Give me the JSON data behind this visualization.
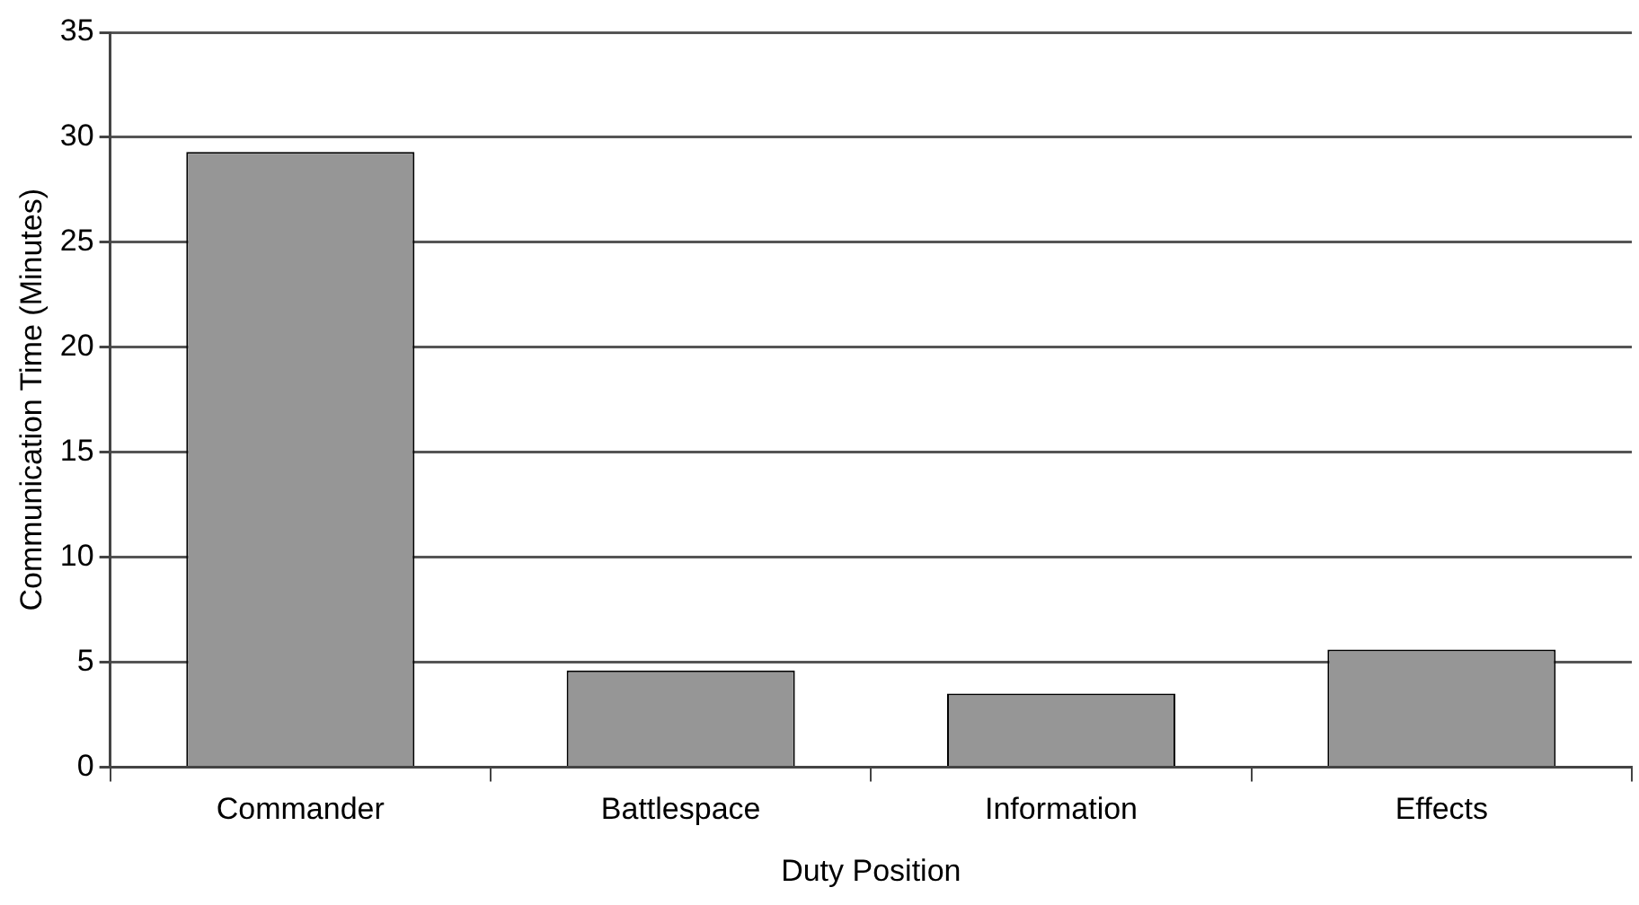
{
  "chart_data": {
    "type": "bar",
    "xlabel": "Duty Position",
    "ylabel": "Communication Time (Minutes)",
    "categories": [
      "Commander",
      "Battlespace",
      "Information",
      "Effects"
    ],
    "values": [
      29.3,
      4.6,
      3.5,
      5.6
    ],
    "color": "#969696",
    "ylim": [
      0,
      35
    ],
    "yticks": [
      0,
      5,
      10,
      15,
      20,
      25,
      30,
      35
    ],
    "grid": "y",
    "legend": false
  }
}
